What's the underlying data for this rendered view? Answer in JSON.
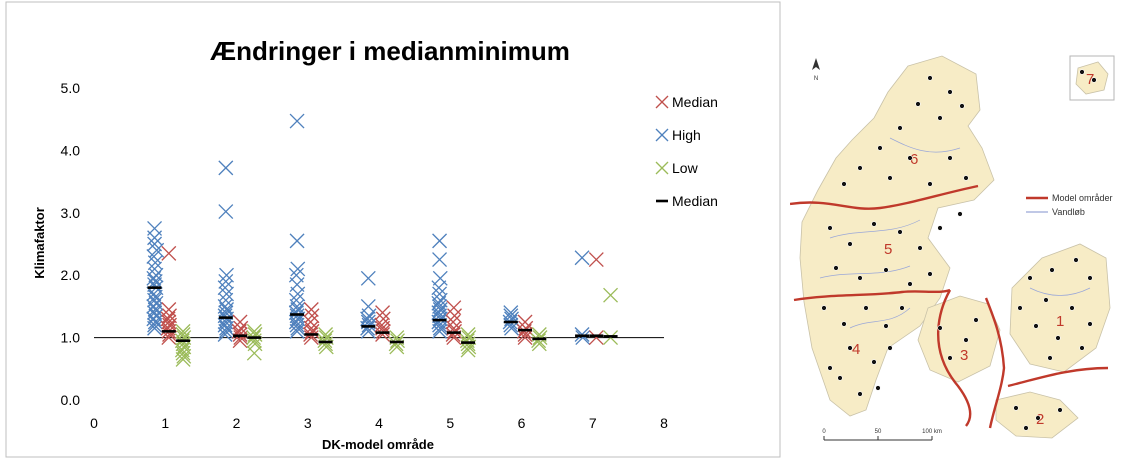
{
  "chart_data": {
    "type": "scatter",
    "title": "Ændringer i medianminimum",
    "xlabel": "DK-model område",
    "ylabel": "Klimafaktor",
    "xlim": [
      0,
      8
    ],
    "ylim": [
      0.0,
      5.0
    ],
    "x_ticks": [
      "0",
      "1",
      "2",
      "3",
      "4",
      "5",
      "6",
      "7",
      "8"
    ],
    "y_ticks": [
      "0.0",
      "1.0",
      "2.0",
      "3.0",
      "4.0",
      "5.0"
    ],
    "grid": false,
    "legend_position": "right",
    "legend": [
      {
        "label": "Median",
        "marker": "x",
        "color": "#c0504d"
      },
      {
        "label": "High",
        "marker": "x",
        "color": "#4f81bd"
      },
      {
        "label": "Low",
        "marker": "x",
        "color": "#9bbb59"
      },
      {
        "label": "Median",
        "marker": "dash",
        "color": "#000000"
      }
    ],
    "series": [
      {
        "name": "High",
        "color": "#4f81bd",
        "points": [
          [
            0.85,
            2.75
          ],
          [
            0.85,
            2.6
          ],
          [
            0.85,
            2.5
          ],
          [
            0.88,
            2.4
          ],
          [
            0.84,
            2.3
          ],
          [
            0.86,
            2.2
          ],
          [
            0.85,
            2.1
          ],
          [
            0.87,
            2.0
          ],
          [
            0.84,
            1.95
          ],
          [
            0.86,
            1.9
          ],
          [
            0.85,
            1.85
          ],
          [
            0.87,
            1.8
          ],
          [
            0.84,
            1.7
          ],
          [
            0.86,
            1.65
          ],
          [
            0.85,
            1.6
          ],
          [
            0.87,
            1.55
          ],
          [
            0.84,
            1.5
          ],
          [
            0.86,
            1.45
          ],
          [
            0.85,
            1.4
          ],
          [
            0.87,
            1.35
          ],
          [
            0.84,
            1.3
          ],
          [
            0.86,
            1.25
          ],
          [
            0.85,
            1.2
          ],
          [
            0.85,
            1.15
          ],
          [
            1.85,
            3.72
          ],
          [
            1.85,
            3.02
          ],
          [
            1.86,
            2.0
          ],
          [
            1.85,
            1.9
          ],
          [
            1.84,
            1.8
          ],
          [
            1.86,
            1.7
          ],
          [
            1.85,
            1.6
          ],
          [
            1.84,
            1.5
          ],
          [
            1.86,
            1.45
          ],
          [
            1.85,
            1.4
          ],
          [
            1.84,
            1.35
          ],
          [
            1.86,
            1.3
          ],
          [
            1.85,
            1.25
          ],
          [
            1.84,
            1.2
          ],
          [
            1.86,
            1.15
          ],
          [
            1.85,
            1.1
          ],
          [
            1.84,
            1.05
          ],
          [
            2.85,
            4.47
          ],
          [
            2.85,
            2.55
          ],
          [
            2.86,
            2.1
          ],
          [
            2.84,
            2.0
          ],
          [
            2.85,
            1.85
          ],
          [
            2.86,
            1.7
          ],
          [
            2.84,
            1.6
          ],
          [
            2.85,
            1.5
          ],
          [
            2.86,
            1.45
          ],
          [
            2.84,
            1.4
          ],
          [
            2.85,
            1.35
          ],
          [
            2.86,
            1.3
          ],
          [
            2.84,
            1.25
          ],
          [
            2.85,
            1.2
          ],
          [
            2.86,
            1.15
          ],
          [
            2.85,
            1.1
          ],
          [
            3.85,
            1.95
          ],
          [
            3.85,
            1.5
          ],
          [
            3.86,
            1.35
          ],
          [
            3.84,
            1.3
          ],
          [
            3.85,
            1.25
          ],
          [
            3.86,
            1.2
          ],
          [
            3.84,
            1.15
          ],
          [
            3.85,
            1.1
          ],
          [
            4.85,
            2.55
          ],
          [
            4.85,
            2.25
          ],
          [
            4.86,
            1.95
          ],
          [
            4.84,
            1.8
          ],
          [
            4.85,
            1.7
          ],
          [
            4.86,
            1.6
          ],
          [
            4.84,
            1.55
          ],
          [
            4.85,
            1.5
          ],
          [
            4.86,
            1.45
          ],
          [
            4.84,
            1.4
          ],
          [
            4.85,
            1.35
          ],
          [
            4.86,
            1.3
          ],
          [
            4.84,
            1.25
          ],
          [
            4.85,
            1.2
          ],
          [
            4.86,
            1.15
          ],
          [
            4.85,
            1.1
          ],
          [
            5.85,
            1.4
          ],
          [
            5.85,
            1.35
          ],
          [
            5.86,
            1.3
          ],
          [
            5.84,
            1.25
          ],
          [
            5.85,
            1.2
          ],
          [
            5.86,
            1.15
          ],
          [
            6.85,
            2.28
          ],
          [
            6.85,
            1.05
          ],
          [
            6.86,
            1.0
          ]
        ]
      },
      {
        "name": "Median",
        "color": "#c0504d",
        "points": [
          [
            1.05,
            2.35
          ],
          [
            1.05,
            1.45
          ],
          [
            1.06,
            1.35
          ],
          [
            1.04,
            1.3
          ],
          [
            1.05,
            1.25
          ],
          [
            1.06,
            1.2
          ],
          [
            1.04,
            1.15
          ],
          [
            1.05,
            1.1
          ],
          [
            1.06,
            1.05
          ],
          [
            1.05,
            1.0
          ],
          [
            2.05,
            1.25
          ],
          [
            2.06,
            1.15
          ],
          [
            2.04,
            1.1
          ],
          [
            2.05,
            1.05
          ],
          [
            2.06,
            1.0
          ],
          [
            2.05,
            0.95
          ],
          [
            3.05,
            1.45
          ],
          [
            3.06,
            1.35
          ],
          [
            3.04,
            1.25
          ],
          [
            3.05,
            1.15
          ],
          [
            3.06,
            1.1
          ],
          [
            3.04,
            1.05
          ],
          [
            3.05,
            1.0
          ],
          [
            4.05,
            1.4
          ],
          [
            4.06,
            1.3
          ],
          [
            4.04,
            1.2
          ],
          [
            4.05,
            1.15
          ],
          [
            4.06,
            1.1
          ],
          [
            4.05,
            1.05
          ],
          [
            5.05,
            1.48
          ],
          [
            5.06,
            1.35
          ],
          [
            5.04,
            1.25
          ],
          [
            5.05,
            1.15
          ],
          [
            5.06,
            1.1
          ],
          [
            5.04,
            1.05
          ],
          [
            5.05,
            1.0
          ],
          [
            6.05,
            1.25
          ],
          [
            6.06,
            1.15
          ],
          [
            6.04,
            1.1
          ],
          [
            6.05,
            1.05
          ],
          [
            6.05,
            1.0
          ],
          [
            7.05,
            2.25
          ],
          [
            7.05,
            1.0
          ]
        ]
      },
      {
        "name": "Low",
        "color": "#9bbb59",
        "points": [
          [
            1.25,
            1.1
          ],
          [
            1.25,
            1.05
          ],
          [
            1.26,
            1.0
          ],
          [
            1.24,
            0.95
          ],
          [
            1.25,
            0.9
          ],
          [
            1.26,
            0.85
          ],
          [
            1.24,
            0.8
          ],
          [
            1.25,
            0.75
          ],
          [
            1.26,
            0.7
          ],
          [
            1.25,
            0.65
          ],
          [
            2.25,
            1.1
          ],
          [
            2.26,
            1.05
          ],
          [
            2.24,
            1.0
          ],
          [
            2.25,
            0.95
          ],
          [
            2.26,
            0.9
          ],
          [
            2.25,
            0.75
          ],
          [
            3.25,
            1.05
          ],
          [
            3.26,
            1.0
          ],
          [
            3.24,
            0.95
          ],
          [
            3.25,
            0.9
          ],
          [
            3.26,
            0.85
          ],
          [
            4.25,
            1.0
          ],
          [
            4.26,
            0.95
          ],
          [
            4.24,
            0.9
          ],
          [
            4.25,
            0.85
          ],
          [
            5.25,
            1.05
          ],
          [
            5.26,
            1.0
          ],
          [
            5.24,
            0.95
          ],
          [
            5.25,
            0.9
          ],
          [
            5.26,
            0.85
          ],
          [
            5.25,
            0.8
          ],
          [
            6.25,
            1.05
          ],
          [
            6.26,
            1.0
          ],
          [
            6.24,
            0.95
          ],
          [
            6.25,
            0.9
          ],
          [
            7.25,
            1.68
          ],
          [
            7.25,
            1.0
          ]
        ]
      }
    ],
    "median_markers": [
      {
        "series": "High",
        "points": [
          [
            0.85,
            1.8
          ],
          [
            1.85,
            1.32
          ],
          [
            2.85,
            1.37
          ],
          [
            3.85,
            1.18
          ],
          [
            4.85,
            1.28
          ],
          [
            5.85,
            1.25
          ],
          [
            6.85,
            1.03
          ]
        ]
      },
      {
        "series": "Median",
        "points": [
          [
            1.05,
            1.1
          ],
          [
            2.05,
            1.03
          ],
          [
            3.05,
            1.05
          ],
          [
            4.05,
            1.08
          ],
          [
            5.05,
            1.08
          ],
          [
            6.05,
            1.12
          ],
          [
            7.05,
            1.03
          ]
        ]
      },
      {
        "series": "Low",
        "points": [
          [
            1.25,
            0.95
          ],
          [
            2.25,
            1.0
          ],
          [
            3.25,
            0.93
          ],
          [
            4.25,
            0.93
          ],
          [
            5.25,
            0.92
          ],
          [
            6.25,
            0.98
          ],
          [
            7.25,
            1.02
          ]
        ]
      }
    ]
  },
  "map": {
    "region_labels": [
      "1",
      "2",
      "3",
      "4",
      "5",
      "6",
      "7"
    ],
    "legend_items": [
      {
        "label": "Model områder",
        "color": "#c0392b"
      },
      {
        "label": "Vandløb",
        "color": "#9aa7d8"
      }
    ],
    "north_label": "N",
    "scale_labels": [
      "0",
      "50",
      "100 km"
    ],
    "land_color": "#f7ecc6",
    "boundary_color": "#c0392b"
  }
}
